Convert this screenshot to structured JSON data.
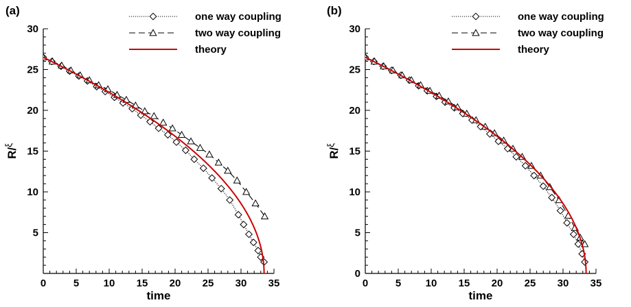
{
  "chart_data": [
    {
      "type": "line",
      "panel_label": "(a)",
      "xlabel": "time",
      "ylabel_main": "R/",
      "ylabel_sym": "ξ",
      "xlim": [
        0,
        35
      ],
      "ylim": [
        0,
        30
      ],
      "xticks": [
        "0",
        "5",
        "10",
        "15",
        "20",
        "25",
        "30",
        "35"
      ],
      "xtick_values": [
        0,
        5,
        10,
        15,
        20,
        25,
        30,
        35
      ],
      "yticks": [
        "5",
        "10",
        "15",
        "20",
        "25",
        "30"
      ],
      "ytick_values": [
        5,
        10,
        15,
        20,
        25,
        30
      ],
      "legend_position": "top-right",
      "grid": false,
      "series": [
        {
          "name": "one way coupling",
          "color": "#000000",
          "line_style": "dotted",
          "marker": "diamond",
          "x": [
            0,
            1.3,
            2.7,
            4.0,
            5.4,
            6.7,
            8.1,
            9.4,
            10.8,
            12.1,
            13.5,
            14.8,
            16.2,
            17.5,
            18.9,
            20.2,
            21.6,
            22.9,
            24.3,
            25.6,
            27.0,
            28.3,
            29.6,
            30.4,
            31.2,
            31.9,
            32.6,
            33.0,
            33.5
          ],
          "y": [
            26.5,
            26.0,
            25.4,
            24.8,
            24.2,
            23.6,
            22.9,
            22.3,
            21.6,
            20.9,
            20.2,
            19.4,
            18.6,
            17.8,
            17.0,
            16.1,
            15.1,
            14.0,
            12.9,
            11.7,
            10.4,
            9.0,
            7.2,
            6.0,
            4.8,
            3.8,
            2.8,
            2.0,
            1.4
          ]
        },
        {
          "name": "two way coupling",
          "color": "#000000",
          "line_style": "dashed",
          "marker": "triangle",
          "x": [
            0,
            1.4,
            2.8,
            4.2,
            5.6,
            7.0,
            8.4,
            9.8,
            11.2,
            12.6,
            14.0,
            15.4,
            16.8,
            18.2,
            19.6,
            21.0,
            22.4,
            23.8,
            25.2,
            26.6,
            28.0,
            29.4,
            30.8,
            32.2,
            33.6
          ],
          "y": [
            26.5,
            26.0,
            25.5,
            24.9,
            24.3,
            23.7,
            23.1,
            22.6,
            21.9,
            21.3,
            20.6,
            19.9,
            19.3,
            18.5,
            17.8,
            17.0,
            16.2,
            15.4,
            14.6,
            13.6,
            12.6,
            11.4,
            10.0,
            8.6,
            7.0
          ]
        },
        {
          "name": "theory",
          "color": "#cc0000",
          "line_style": "solid",
          "marker": "none",
          "model": "sqrt",
          "y0": 26.5,
          "t_end": 33.5
        }
      ]
    },
    {
      "type": "line",
      "panel_label": "(b)",
      "xlabel": "time",
      "ylabel_main": "R/",
      "ylabel_sym": "ξ",
      "xlim": [
        0,
        35
      ],
      "ylim": [
        0,
        30
      ],
      "xticks": [
        "0",
        "5",
        "10",
        "15",
        "20",
        "25",
        "30",
        "35"
      ],
      "xtick_values": [
        0,
        5,
        10,
        15,
        20,
        25,
        30,
        35
      ],
      "yticks": [
        "0",
        "5",
        "10",
        "15",
        "20",
        "25",
        "30"
      ],
      "ytick_values": [
        0,
        5,
        10,
        15,
        20,
        25,
        30
      ],
      "legend_position": "top-right",
      "grid": false,
      "series": [
        {
          "name": "one way coupling",
          "color": "#000000",
          "line_style": "dotted",
          "marker": "diamond",
          "x": [
            0,
            1.3,
            2.7,
            4.0,
            5.4,
            6.7,
            8.1,
            9.4,
            10.8,
            12.1,
            13.5,
            14.8,
            16.2,
            17.5,
            18.9,
            20.2,
            21.6,
            22.9,
            24.3,
            25.6,
            27.0,
            28.3,
            29.6,
            30.6,
            31.6,
            32.3,
            32.9,
            33.3
          ],
          "y": [
            26.5,
            26.0,
            25.4,
            24.9,
            24.3,
            23.7,
            23.0,
            22.4,
            21.7,
            21.0,
            20.3,
            19.6,
            18.8,
            18.0,
            17.1,
            16.2,
            15.3,
            14.3,
            13.2,
            12.0,
            10.7,
            9.3,
            7.7,
            6.2,
            4.8,
            3.6,
            2.4,
            1.4
          ]
        },
        {
          "name": "two way coupling",
          "color": "#000000",
          "line_style": "dashed",
          "marker": "triangle",
          "x": [
            0,
            1.4,
            2.8,
            4.2,
            5.6,
            7.0,
            8.4,
            9.8,
            11.2,
            12.6,
            14.0,
            15.4,
            16.8,
            18.2,
            19.6,
            21.0,
            22.4,
            23.8,
            25.2,
            26.6,
            28.0,
            29.4,
            30.8,
            31.8,
            32.6,
            33.3
          ],
          "y": [
            26.5,
            26.0,
            25.4,
            24.9,
            24.3,
            23.7,
            23.1,
            22.4,
            21.8,
            21.1,
            20.4,
            19.6,
            18.8,
            18.0,
            17.2,
            16.3,
            15.3,
            14.3,
            13.2,
            12.0,
            10.6,
            9.0,
            7.1,
            5.6,
            4.4,
            3.6
          ]
        },
        {
          "name": "theory",
          "color": "#cc0000",
          "line_style": "solid",
          "marker": "none",
          "model": "sqrt",
          "y0": 26.5,
          "t_end": 33.5
        }
      ]
    }
  ]
}
